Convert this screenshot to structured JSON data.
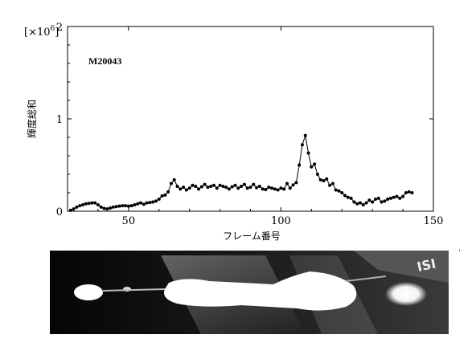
{
  "chart_data": {
    "type": "line",
    "title": "",
    "xlabel": "フレーム番号",
    "ylabel": "輝度総和",
    "y_scale_label": "[×10",
    "y_scale_exp": "6",
    "y_scale_close": "]",
    "annotation": "M20043",
    "xlim": [
      30,
      150
    ],
    "ylim": [
      0,
      2000000
    ],
    "x_ticks": [
      50,
      100,
      150
    ],
    "y_ticks": [
      0,
      1000000,
      2000000
    ],
    "y_tick_labels": [
      "0",
      "1",
      "2"
    ],
    "grid": false,
    "marker": "filled-circle",
    "line_color": "#000000",
    "series": [
      {
        "x": [
          31,
          32,
          33,
          34,
          35,
          36,
          37,
          38,
          39,
          40,
          41,
          42,
          43,
          44,
          45,
          46,
          47,
          48,
          49,
          50,
          51,
          52,
          53,
          54,
          55,
          56,
          57,
          58,
          59,
          60,
          61,
          62,
          63,
          64,
          65,
          66,
          67,
          68,
          69,
          70,
          71,
          72,
          73,
          74,
          75,
          76,
          77,
          78,
          79,
          80,
          81,
          82,
          83,
          84,
          85,
          86,
          87,
          88,
          89,
          90,
          91,
          92,
          93,
          94,
          95,
          96,
          97,
          98,
          99,
          100,
          101,
          102,
          103,
          104,
          105,
          106,
          107,
          108,
          109,
          110,
          111,
          112,
          113,
          114,
          115,
          116,
          117,
          118,
          119,
          120,
          121,
          122,
          123,
          124,
          125,
          126,
          127,
          128,
          129,
          130,
          131,
          132,
          133,
          134,
          135,
          136,
          137,
          138,
          139,
          140,
          141,
          142,
          143
        ],
        "values": [
          10000,
          25000,
          45000,
          60000,
          70000,
          80000,
          85000,
          90000,
          90000,
          70000,
          45000,
          30000,
          25000,
          35000,
          45000,
          50000,
          55000,
          60000,
          60000,
          55000,
          60000,
          70000,
          80000,
          90000,
          75000,
          90000,
          95000,
          100000,
          110000,
          130000,
          165000,
          175000,
          210000,
          300000,
          340000,
          270000,
          240000,
          260000,
          230000,
          250000,
          280000,
          270000,
          240000,
          265000,
          290000,
          260000,
          270000,
          280000,
          250000,
          280000,
          270000,
          260000,
          240000,
          265000,
          280000,
          250000,
          270000,
          290000,
          250000,
          260000,
          290000,
          255000,
          270000,
          240000,
          235000,
          260000,
          250000,
          240000,
          230000,
          250000,
          240000,
          300000,
          250000,
          285000,
          310000,
          500000,
          720000,
          820000,
          630000,
          480000,
          510000,
          400000,
          340000,
          330000,
          350000,
          280000,
          300000,
          230000,
          220000,
          200000,
          170000,
          150000,
          140000,
          100000,
          80000,
          90000,
          70000,
          90000,
          120000,
          100000,
          130000,
          140000,
          100000,
          110000,
          130000,
          140000,
          150000,
          160000,
          140000,
          160000,
          200000,
          210000,
          200000
        ]
      }
    ]
  },
  "photo": {
    "description_label": "",
    "background": "#0a0a0a",
    "glow_color": "#ffffff",
    "plate_text": "ISI"
  },
  "corner_mark": "'"
}
